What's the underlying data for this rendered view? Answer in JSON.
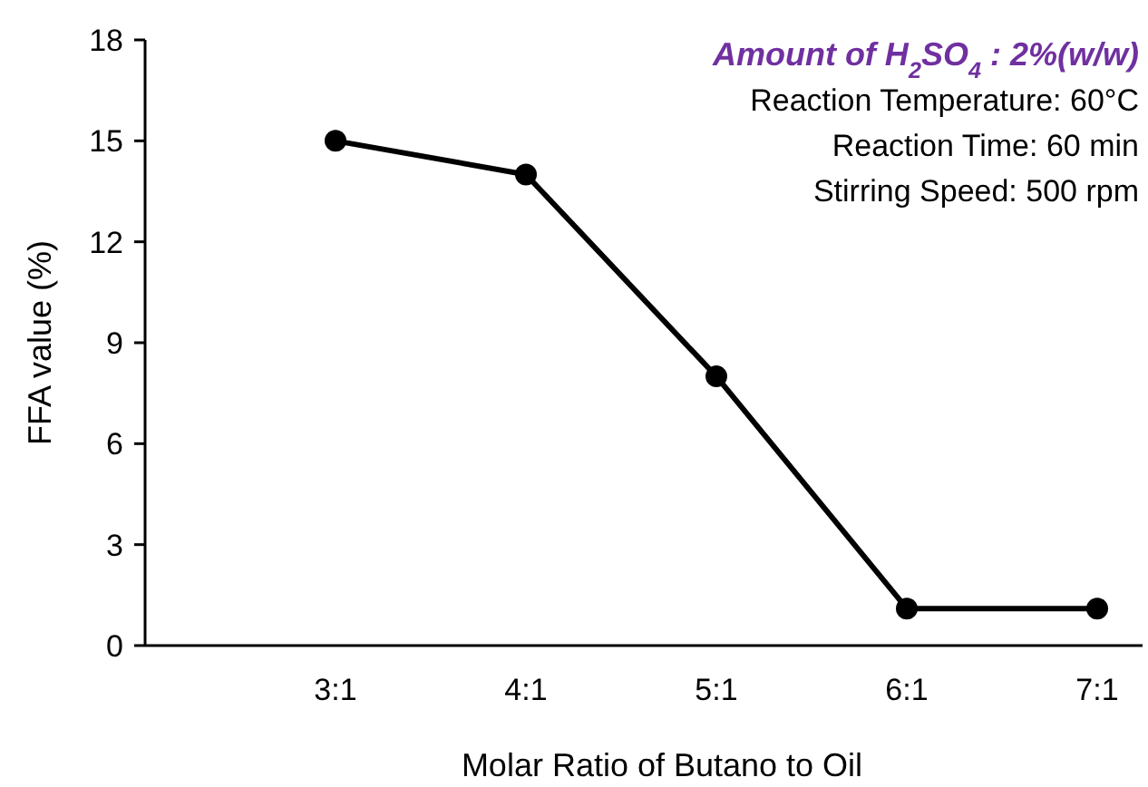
{
  "chart_data": {
    "type": "line",
    "xlabel": "Molar Ratio of Butano to Oil",
    "ylabel": "FFA value (%)",
    "categories": [
      null,
      "3:1",
      "4:1",
      "5:1",
      "6:1",
      "7:1"
    ],
    "series": [
      {
        "color": "#000000",
        "values": [
          null,
          15,
          14,
          8,
          1.1,
          1.1
        ]
      }
    ],
    "ylim": [
      0,
      18
    ],
    "yticks": [
      0,
      3,
      6,
      9,
      12,
      15,
      18
    ],
    "marker": "circle",
    "line_style": "solid",
    "grid": false,
    "annotations": [
      "Amount of H$_{2}$SO$_{4}$ : 2%(w/w)",
      "Reaction Temperature: 60°C",
      "Reaction Time: 60 min",
      "Stirring Speed: 500 rpm"
    ]
  }
}
